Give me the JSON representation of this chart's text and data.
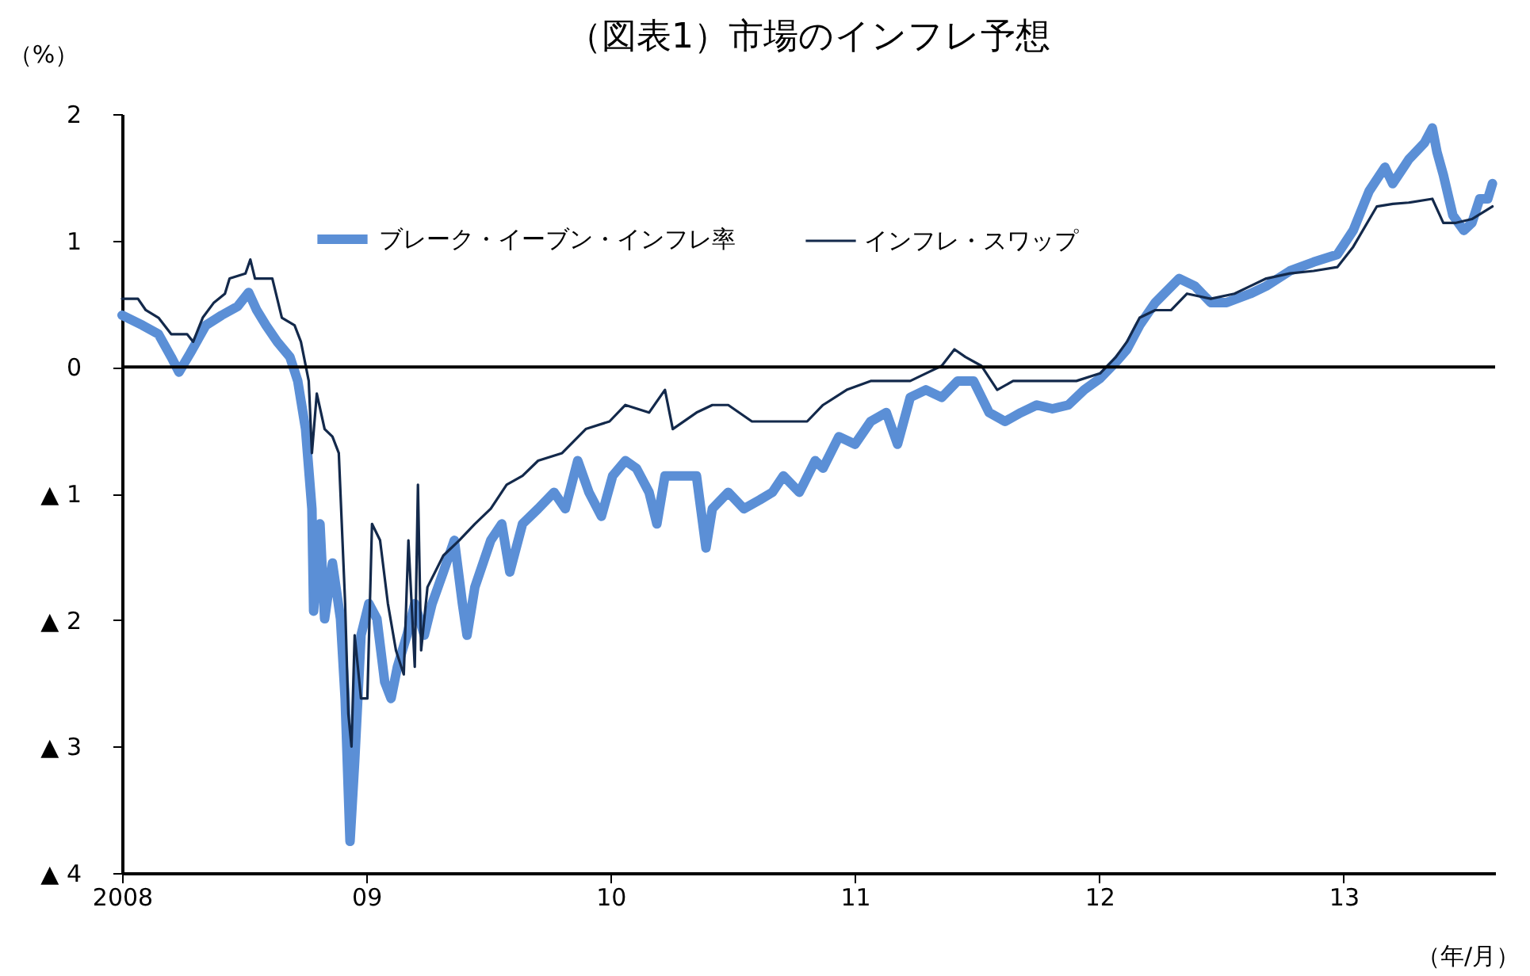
{
  "chart_data": {
    "type": "line",
    "title": "（図表1）市場のインフレ予想",
    "ylabel": "（%）",
    "xlabel": "（年/月）",
    "xlim": [
      2008,
      2013.62
    ],
    "ylim": [
      -4,
      2
    ],
    "xticks": [
      {
        "value": 2008,
        "label": "2008"
      },
      {
        "value": 2009,
        "label": "09"
      },
      {
        "value": 2010,
        "label": "10"
      },
      {
        "value": 2011,
        "label": "11"
      },
      {
        "value": 2012,
        "label": "12"
      },
      {
        "value": 2013,
        "label": "13"
      }
    ],
    "yticks": [
      2,
      1,
      0,
      {
        "value": -1,
        "label": "▲ 1"
      },
      {
        "value": -2,
        "label": "▲ 2"
      },
      {
        "value": -3,
        "label": "▲ 3"
      },
      {
        "value": -4,
        "label": "▲ 4"
      }
    ],
    "grid": false,
    "legend": "top",
    "line_style": "solid",
    "ref_lines": [
      {
        "axis": "y",
        "value": 0,
        "color": "#000000"
      }
    ],
    "series": [
      {
        "name": "ブレーク・イーブン・インフレ率",
        "color": "#5b8fd6",
        "x": [
          2008.0,
          2008.084,
          2008.149,
          2008.201,
          2008.233,
          2008.279,
          2008.343,
          2008.408,
          2008.473,
          2008.518,
          2008.551,
          2008.589,
          2008.635,
          2008.687,
          2008.719,
          2008.751,
          2008.777,
          2008.784,
          2008.81,
          2008.829,
          2008.861,
          2008.894,
          2008.913,
          2008.933,
          2008.952,
          2008.978,
          2009.01,
          2009.043,
          2009.075,
          2009.101,
          2009.127,
          2009.166,
          2009.198,
          2009.237,
          2009.269,
          2009.315,
          2009.36,
          2009.393,
          2009.412,
          2009.444,
          2009.509,
          2009.554,
          2009.587,
          2009.639,
          2009.703,
          2009.768,
          2009.814,
          2009.865,
          2009.911,
          2009.962,
          2010.008,
          2010.06,
          2010.105,
          2010.157,
          2010.189,
          2010.222,
          2010.286,
          2010.351,
          2010.39,
          2010.416,
          2010.481,
          2010.545,
          2010.61,
          2010.662,
          2010.707,
          2010.772,
          2010.837,
          2010.869,
          2010.934,
          2011.0,
          2011.064,
          2011.128,
          2011.174,
          2011.226,
          2011.29,
          2011.355,
          2011.42,
          2011.485,
          2011.549,
          2011.614,
          2011.679,
          2011.744,
          2011.808,
          2011.873,
          2011.938,
          2012.003,
          2012.068,
          2012.113,
          2012.165,
          2012.229,
          2012.327,
          2012.391,
          2012.456,
          2012.521,
          2012.618,
          2012.683,
          2012.78,
          2012.877,
          2012.974,
          2013.039,
          2013.104,
          2013.169,
          2013.201,
          2013.266,
          2013.33,
          2013.363,
          2013.382,
          2013.408,
          2013.447,
          2013.492,
          2013.525,
          2013.557,
          2013.59,
          2013.609
        ],
        "values": [
          0.41,
          0.33,
          0.26,
          0.08,
          -0.04,
          0.11,
          0.33,
          0.41,
          0.48,
          0.59,
          0.45,
          0.33,
          0.2,
          0.08,
          -0.11,
          -0.49,
          -1.12,
          -1.93,
          -1.24,
          -1.99,
          -1.55,
          -1.99,
          -2.62,
          -3.75,
          -3.12,
          -2.12,
          -1.87,
          -1.99,
          -2.49,
          -2.62,
          -2.37,
          -2.12,
          -1.87,
          -2.12,
          -1.87,
          -1.62,
          -1.37,
          -1.87,
          -2.12,
          -1.74,
          -1.37,
          -1.24,
          -1.62,
          -1.24,
          -1.12,
          -0.99,
          -1.12,
          -0.74,
          -0.99,
          -1.18,
          -0.86,
          -0.74,
          -0.8,
          -0.99,
          -1.24,
          -0.86,
          -0.86,
          -0.86,
          -1.43,
          -1.12,
          -0.99,
          -1.12,
          -1.05,
          -0.99,
          -0.86,
          -0.99,
          -0.74,
          -0.8,
          -0.55,
          -0.61,
          -0.43,
          -0.36,
          -0.61,
          -0.24,
          -0.18,
          -0.24,
          -0.11,
          -0.11,
          -0.36,
          -0.43,
          -0.36,
          -0.3,
          -0.33,
          -0.3,
          -0.18,
          -0.09,
          0.04,
          0.14,
          0.33,
          0.51,
          0.7,
          0.64,
          0.51,
          0.51,
          0.58,
          0.64,
          0.76,
          0.83,
          0.89,
          1.08,
          1.39,
          1.58,
          1.45,
          1.64,
          1.77,
          1.89,
          1.7,
          1.52,
          1.2,
          1.08,
          1.14,
          1.33,
          1.33,
          1.45
        ]
      },
      {
        "name": "インフレ・スワップ",
        "color": "#13294b",
        "x": [
          2008.0,
          2008.065,
          2008.097,
          2008.149,
          2008.201,
          2008.266,
          2008.291,
          2008.33,
          2008.376,
          2008.421,
          2008.44,
          2008.505,
          2008.525,
          2008.544,
          2008.615,
          2008.654,
          2008.706,
          2008.732,
          2008.764,
          2008.777,
          2008.797,
          2008.829,
          2008.861,
          2008.887,
          2008.913,
          2008.926,
          2008.939,
          2008.952,
          2008.978,
          2009.004,
          2009.023,
          2009.056,
          2009.088,
          2009.121,
          2009.153,
          2009.172,
          2009.198,
          2009.211,
          2009.224,
          2009.25,
          2009.315,
          2009.38,
          2009.444,
          2009.509,
          2009.574,
          2009.639,
          2009.703,
          2009.801,
          2009.898,
          2009.995,
          2010.06,
          2010.157,
          2010.222,
          2010.254,
          2010.351,
          2010.416,
          2010.481,
          2010.578,
          2010.675,
          2010.804,
          2010.869,
          2010.966,
          2011.064,
          2011.161,
          2011.226,
          2011.29,
          2011.355,
          2011.407,
          2011.452,
          2011.517,
          2011.582,
          2011.647,
          2011.776,
          2011.906,
          2012.003,
          2012.068,
          2012.113,
          2012.165,
          2012.229,
          2012.294,
          2012.359,
          2012.456,
          2012.553,
          2012.618,
          2012.683,
          2012.78,
          2012.877,
          2012.974,
          2013.039,
          2013.136,
          2013.201,
          2013.266,
          2013.363,
          2013.408,
          2013.46,
          2013.525,
          2013.609
        ],
        "values": [
          0.54,
          0.54,
          0.45,
          0.39,
          0.26,
          0.26,
          0.2,
          0.39,
          0.51,
          0.58,
          0.7,
          0.74,
          0.85,
          0.7,
          0.7,
          0.39,
          0.33,
          0.2,
          -0.11,
          -0.68,
          -0.21,
          -0.49,
          -0.55,
          -0.68,
          -1.87,
          -2.74,
          -3.0,
          -2.12,
          -2.62,
          -2.62,
          -1.24,
          -1.37,
          -1.87,
          -2.24,
          -2.43,
          -1.37,
          -2.37,
          -0.93,
          -2.24,
          -1.74,
          -1.49,
          -1.37,
          -1.24,
          -1.12,
          -0.93,
          -0.86,
          -0.74,
          -0.68,
          -0.49,
          -0.43,
          -0.3,
          -0.36,
          -0.18,
          -0.49,
          -0.36,
          -0.3,
          -0.3,
          -0.43,
          -0.43,
          -0.43,
          -0.3,
          -0.18,
          -0.11,
          -0.11,
          -0.11,
          -0.05,
          0.01,
          0.14,
          0.08,
          0.01,
          -0.18,
          -0.11,
          -0.11,
          -0.11,
          -0.05,
          0.08,
          0.2,
          0.39,
          0.45,
          0.45,
          0.58,
          0.54,
          0.58,
          0.64,
          0.7,
          0.74,
          0.76,
          0.79,
          0.95,
          1.27,
          1.29,
          1.3,
          1.33,
          1.14,
          1.14,
          1.17,
          1.27
        ]
      }
    ]
  }
}
